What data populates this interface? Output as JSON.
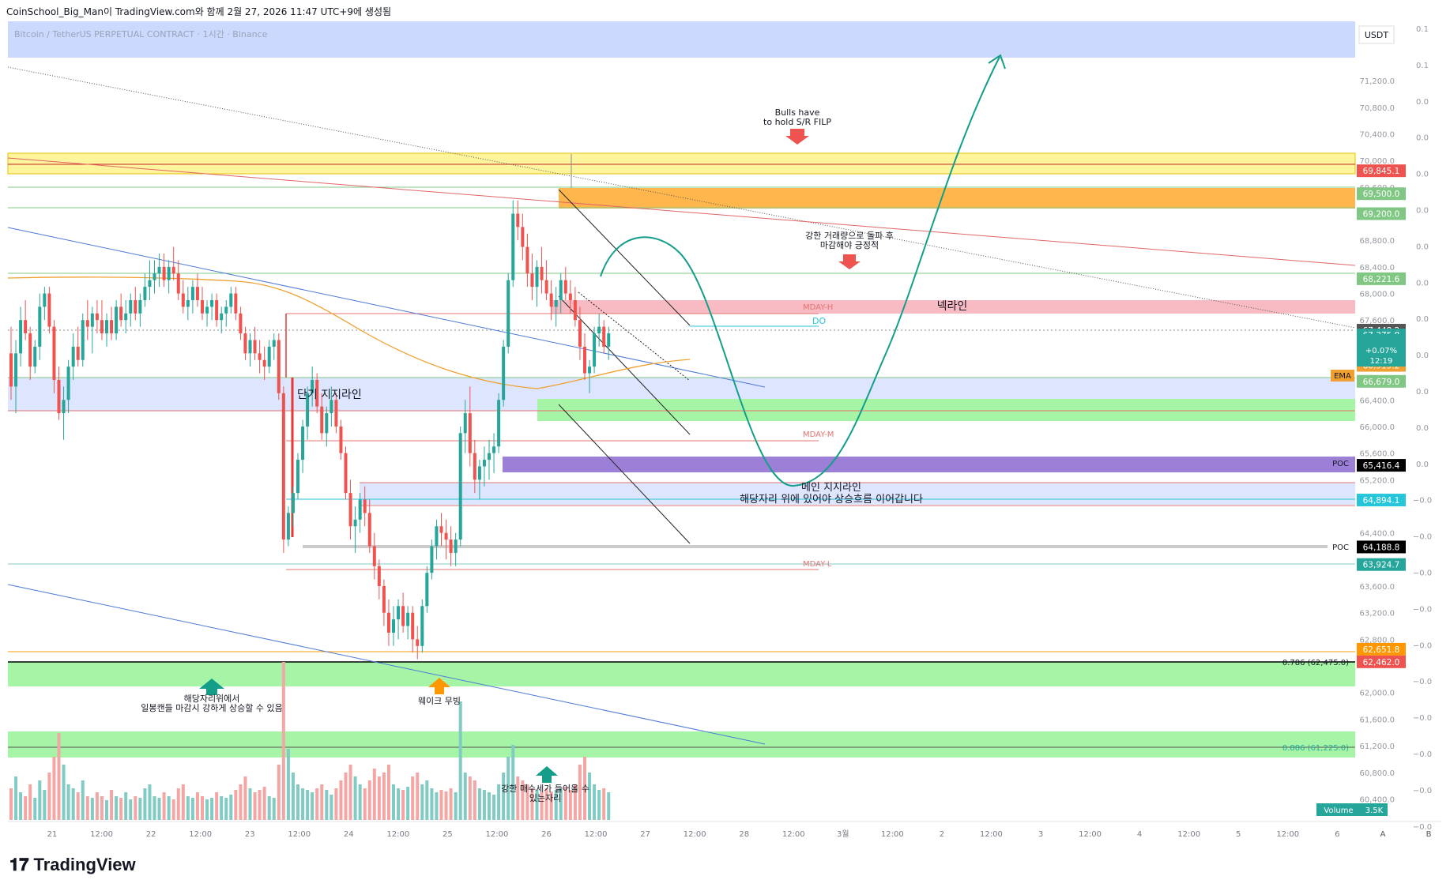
{
  "header": {
    "snapshot_text": "CoinSchool_Big_Man이 TradingView.com와 함께 2월 27, 2026 11:47 UTC+9에 생성됨",
    "symbol_text": "Bitcoin / TetherUS PERPETUAL CONTRACT · 1시간 · Binance"
  },
  "brand": {
    "logo": "𝟏𝟕",
    "name": "TradingView"
  },
  "colors": {
    "up": "#26a69a",
    "down": "#ef5350",
    "ema": "#f0a030",
    "support_band": "#ccd9ff",
    "green_zone": "#a6f5a6",
    "yellow_zone": "#fff59d",
    "orange_zone": "#ffb74d",
    "pink_zone": "#f8bbc3",
    "poc_band": "#9c7fd6",
    "arrow_teal": "#149e8a"
  },
  "chart_data": {
    "type": "candlestick",
    "currency": "USDT",
    "ylim": [
      60300,
      72200
    ],
    "x_ticks": [
      "21",
      "12:00",
      "22",
      "12:00",
      "23",
      "12:00",
      "24",
      "12:00",
      "25",
      "12:00",
      "26",
      "12:00",
      "27",
      "12:00",
      "28",
      "12:00",
      "3월",
      "12:00",
      "2",
      "12:00",
      "3",
      "12:00",
      "4",
      "12:00",
      "5",
      "12:00",
      "6"
    ],
    "y_ticks": [
      "71,200.0",
      "70,800.0",
      "70,400.0",
      "70,000.0",
      "69,600.0",
      "68,800.0",
      "68,400.0",
      "68,000.0",
      "67,600.0",
      "66,400.0",
      "66,000.0",
      "65,600.0",
      "65,200.0",
      "64,400.0",
      "63,600.0",
      "63,200.0",
      "62,800.0",
      "62,000.0",
      "61,600.0",
      "61,200.0",
      "60,800.0",
      "60,400.0"
    ],
    "right_axis_ticks": [
      "0.1",
      "0.1",
      "0.0",
      "0.0",
      "0.0",
      "0.0",
      "0.0",
      "0.0",
      "0.0",
      "0.0",
      "0.0",
      "0.0",
      "0.0",
      "−0.0",
      "−0.0",
      "−0.0",
      "−0.0",
      "−0.0",
      "−0.0",
      "−0.0",
      "−0.0",
      "−0.0",
      "−0.0"
    ],
    "axis_corner_labels": [
      "A",
      "B"
    ],
    "price_labels": [
      {
        "value": 69845.1,
        "text": "69,845.1",
        "color": "#ef5350"
      },
      {
        "value": 69500.0,
        "text": "69,500.0",
        "color": "#81c784"
      },
      {
        "value": 69200.0,
        "text": "69,200.0",
        "color": "#81c784"
      },
      {
        "value": 68221.6,
        "text": "68,221.6",
        "color": "#81c784"
      },
      {
        "value": 67448.2,
        "text": "67,448.2",
        "color": "#555555"
      },
      {
        "value": 67375.8,
        "text": "67,375.8",
        "color": "#26a69a"
      },
      {
        "value": 66919.2,
        "text": "66,919.2",
        "color": "#f0a030"
      },
      {
        "value": 66679.0,
        "text": "66,679.0",
        "color": "#81c784"
      },
      {
        "value": 65416.4,
        "text": "65,416.4",
        "color": "#000000"
      },
      {
        "value": 64894.1,
        "text": "64,894.1",
        "color": "#26c6da"
      },
      {
        "value": 64188.8,
        "text": "64,188.8",
        "color": "#000000"
      },
      {
        "value": 63924.7,
        "text": "63,924.7",
        "color": "#26a69a"
      },
      {
        "value": 62651.8,
        "text": "62,651.8",
        "color": "#ff9800"
      },
      {
        "value": 62462.0,
        "text": "62,462.0",
        "color": "#ef5350"
      }
    ],
    "last_price_detail": {
      "change": "+0.07%",
      "countdown": "12:19"
    },
    "left_tags": {
      "ema": "EMA",
      "poc": "POC"
    },
    "fib_levels": [
      {
        "value": 62475,
        "label": "0.786 (62,475.0)"
      },
      {
        "value": 61225,
        "label": "0.886 (61,225.0)"
      }
    ],
    "level_labels": {
      "mday_h": "MDAY-H",
      "mday_m": "MDAY-M",
      "mday_l": "MDAY-L",
      "do": "DO"
    },
    "volume": {
      "label": "Volume",
      "value": "3.5K"
    },
    "annotations": {
      "bulls_1": "Bulls have",
      "bulls_2": "to hold S/R FILP",
      "strong_vol_1": "강한 거래량으로 돌파 후",
      "strong_vol_2": "마감해야 긍정적",
      "neckline": "넥라인",
      "short_support": "단기 지지라인",
      "main_support_1": "메인 지지라인",
      "main_support_2": "해당자리 위에 있어야 상승흐름 이어갑니다",
      "daily_1": "해당자리위에서",
      "daily_2": "일봉캔들 마감시 강하게 상승할 수 있음",
      "wake": "웨이크 무빙",
      "buy_1": "강한 매수세가 들어올 수",
      "buy_2": "있는자리"
    },
    "candles": [
      [
        67100,
        67500,
        66400,
        66600
      ],
      [
        66600,
        67300,
        66200,
        67100
      ],
      [
        67100,
        67800,
        66900,
        67600
      ],
      [
        67600,
        67900,
        67300,
        67400
      ],
      [
        67400,
        67500,
        66700,
        66900
      ],
      [
        66900,
        67300,
        66800,
        67200
      ],
      [
        67200,
        68000,
        67000,
        67800
      ],
      [
        67800,
        68100,
        67600,
        68000
      ],
      [
        68000,
        68100,
        67400,
        67500
      ],
      [
        67500,
        67600,
        66500,
        66700
      ],
      [
        66700,
        66900,
        66100,
        66200
      ],
      [
        66200,
        66600,
        65800,
        66400
      ],
      [
        66400,
        67000,
        66200,
        66900
      ],
      [
        66900,
        67400,
        66700,
        67200
      ],
      [
        67200,
        67500,
        66900,
        67000
      ],
      [
        67000,
        67700,
        66900,
        67600
      ],
      [
        67600,
        67900,
        67300,
        67500
      ],
      [
        67500,
        67800,
        67100,
        67700
      ],
      [
        67700,
        67900,
        67400,
        67600
      ],
      [
        67600,
        67900,
        67300,
        67400
      ],
      [
        67400,
        67700,
        67200,
        67600
      ],
      [
        67600,
        67800,
        67300,
        67400
      ],
      [
        67400,
        67900,
        67300,
        67800
      ],
      [
        67800,
        68000,
        67500,
        67600
      ],
      [
        67600,
        67900,
        67400,
        67700
      ],
      [
        67700,
        68000,
        67500,
        67900
      ],
      [
        67900,
        68100,
        67600,
        67700
      ],
      [
        67700,
        68000,
        67500,
        67900
      ],
      [
        67900,
        68300,
        67800,
        68100
      ],
      [
        68100,
        68500,
        67900,
        68200
      ],
      [
        68200,
        68500,
        68000,
        68300
      ],
      [
        68300,
        68600,
        68100,
        68400
      ],
      [
        68400,
        68600,
        68100,
        68200
      ],
      [
        68200,
        68500,
        68000,
        68400
      ],
      [
        68400,
        68700,
        68200,
        68300
      ],
      [
        68300,
        68500,
        67900,
        68000
      ],
      [
        68000,
        68200,
        67700,
        67800
      ],
      [
        67800,
        68100,
        67600,
        67900
      ],
      [
        67900,
        68200,
        67700,
        68100
      ],
      [
        68100,
        68300,
        67800,
        67900
      ],
      [
        67900,
        68100,
        67600,
        67700
      ],
      [
        67700,
        67900,
        67500,
        67800
      ],
      [
        67800,
        68000,
        67600,
        67900
      ],
      [
        67900,
        68000,
        67500,
        67600
      ],
      [
        67600,
        67800,
        67400,
        67700
      ],
      [
        67700,
        67900,
        67500,
        67800
      ],
      [
        67800,
        68100,
        67700,
        68000
      ],
      [
        68000,
        68100,
        67600,
        67700
      ],
      [
        67700,
        67800,
        67300,
        67400
      ],
      [
        67400,
        67500,
        67000,
        67100
      ],
      [
        67100,
        67400,
        66900,
        67300
      ],
      [
        67300,
        67500,
        67000,
        67100
      ],
      [
        67100,
        67300,
        66800,
        67000
      ],
      [
        67000,
        67200,
        66700,
        66900
      ],
      [
        66900,
        67300,
        66800,
        67200
      ],
      [
        67200,
        67400,
        67000,
        67300
      ],
      [
        67300,
        67400,
        66400,
        66500
      ],
      [
        66500,
        66600,
        64100,
        64300
      ],
      [
        64300,
        64800,
        64200,
        64700
      ],
      [
        64700,
        65100,
        64500,
        65000
      ],
      [
        65000,
        65600,
        64900,
        65500
      ],
      [
        65500,
        66100,
        65300,
        66000
      ],
      [
        66000,
        66600,
        65800,
        66500
      ],
      [
        66500,
        66900,
        66300,
        66700
      ],
      [
        66700,
        66800,
        66200,
        66300
      ],
      [
        66300,
        66500,
        65800,
        65900
      ],
      [
        65900,
        66300,
        65700,
        66200
      ],
      [
        66200,
        66600,
        66000,
        66400
      ],
      [
        66400,
        66500,
        65900,
        66000
      ],
      [
        66000,
        66100,
        65500,
        65600
      ],
      [
        65600,
        65700,
        64900,
        65000
      ],
      [
        65000,
        65200,
        64300,
        64500
      ],
      [
        64500,
        64800,
        64100,
        64600
      ],
      [
        64600,
        65000,
        64400,
        64900
      ],
      [
        64900,
        65100,
        64500,
        64700
      ],
      [
        64700,
        64900,
        64100,
        64200
      ],
      [
        64200,
        64400,
        63700,
        63900
      ],
      [
        63900,
        64000,
        63400,
        63600
      ],
      [
        63600,
        63700,
        63000,
        63200
      ],
      [
        63200,
        63400,
        62700,
        62900
      ],
      [
        62900,
        63300,
        62700,
        63100
      ],
      [
        63100,
        63400,
        62800,
        63300
      ],
      [
        63300,
        63500,
        62900,
        63000
      ],
      [
        63000,
        63300,
        62800,
        63200
      ],
      [
        63200,
        63300,
        62600,
        62800
      ],
      [
        62800,
        63000,
        62500,
        62700
      ],
      [
        62700,
        63400,
        62600,
        63300
      ],
      [
        63300,
        63900,
        63200,
        63800
      ],
      [
        63800,
        64300,
        63700,
        64200
      ],
      [
        64200,
        64600,
        64000,
        64500
      ],
      [
        64500,
        64700,
        64200,
        64400
      ],
      [
        64400,
        64600,
        64000,
        64300
      ],
      [
        64300,
        64500,
        63900,
        64100
      ],
      [
        64100,
        64400,
        63900,
        64300
      ],
      [
        64300,
        66000,
        64200,
        65900
      ],
      [
        65900,
        66400,
        65600,
        66200
      ],
      [
        66200,
        66600,
        65400,
        65600
      ],
      [
        65600,
        65800,
        65000,
        65200
      ],
      [
        65200,
        65500,
        64900,
        65400
      ],
      [
        65400,
        65700,
        65100,
        65500
      ],
      [
        65500,
        65800,
        65200,
        65600
      ],
      [
        65600,
        65900,
        65300,
        65700
      ],
      [
        65700,
        66500,
        65600,
        66400
      ],
      [
        66400,
        67300,
        66300,
        67200
      ],
      [
        67200,
        68300,
        67100,
        68200
      ],
      [
        68200,
        69400,
        68100,
        69200
      ],
      [
        69200,
        69400,
        68800,
        69000
      ],
      [
        69000,
        69200,
        68500,
        68700
      ],
      [
        68700,
        68900,
        68100,
        68300
      ],
      [
        68300,
        68600,
        67900,
        68100
      ],
      [
        68100,
        68500,
        67800,
        68400
      ],
      [
        68400,
        68700,
        68000,
        68200
      ],
      [
        68200,
        68500,
        67900,
        68000
      ],
      [
        68000,
        68200,
        67600,
        67800
      ],
      [
        67800,
        68100,
        67500,
        67900
      ],
      [
        67900,
        68300,
        67700,
        68200
      ],
      [
        68200,
        68400,
        67900,
        68000
      ],
      [
        68000,
        68200,
        67700,
        67900
      ],
      [
        67900,
        68100,
        67500,
        67600
      ],
      [
        67600,
        67800,
        67000,
        67200
      ],
      [
        67200,
        67400,
        66700,
        66800
      ],
      [
        66800,
        67000,
        66500,
        66900
      ],
      [
        66900,
        67500,
        66800,
        67400
      ],
      [
        67400,
        67700,
        67200,
        67500
      ],
      [
        67500,
        67600,
        67100,
        67200
      ],
      [
        67200,
        67500,
        67000,
        67400
      ]
    ],
    "volumes": [
      40,
      55,
      35,
      30,
      45,
      28,
      50,
      38,
      60,
      80,
      110,
      70,
      45,
      40,
      35,
      50,
      30,
      28,
      35,
      30,
      25,
      38,
      30,
      28,
      35,
      26,
      30,
      28,
      40,
      45,
      30,
      28,
      35,
      30,
      26,
      40,
      45,
      30,
      28,
      35,
      30,
      26,
      28,
      35,
      30,
      28,
      32,
      38,
      45,
      55,
      40,
      35,
      38,
      42,
      30,
      28,
      70,
      200,
      90,
      60,
      45,
      40,
      38,
      35,
      40,
      45,
      38,
      32,
      40,
      50,
      60,
      70,
      55,
      45,
      40,
      50,
      65,
      55,
      60,
      70,
      45,
      40,
      38,
      42,
      55,
      60,
      45,
      50,
      40,
      35,
      38,
      36,
      40,
      35,
      150,
      60,
      55,
      50,
      40,
      38,
      35,
      32,
      45,
      60,
      80,
      95,
      55,
      50,
      45,
      40,
      38,
      35,
      40,
      36,
      38,
      40,
      42,
      38,
      45,
      70,
      80,
      60,
      45,
      38,
      40,
      35
    ]
  }
}
